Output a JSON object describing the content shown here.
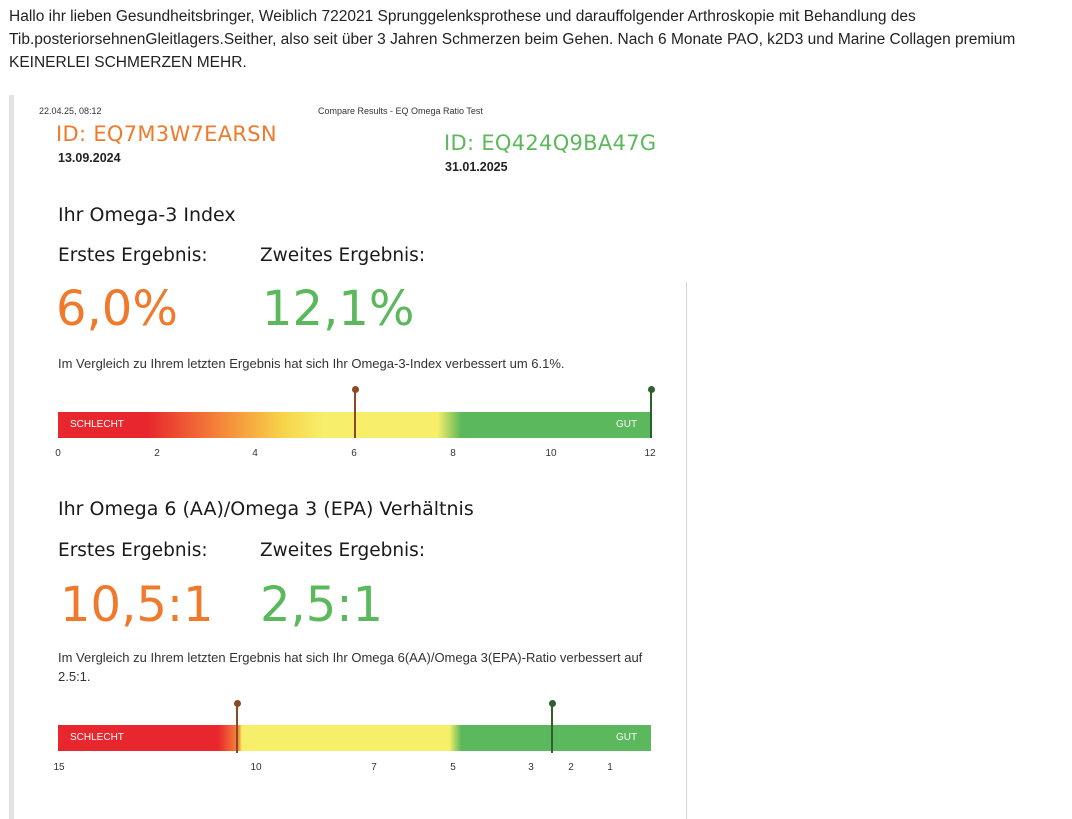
{
  "post": {
    "text": "Hallo ihr lieben Gesundheitsbringer, Weiblich 722021 Sprunggelenksprothese und darauffolgender Arthroskopie mit Behandlung des Tib.posteriorsehnenGleitlagers.Seither, also seit über 3 Jahren Schmerzen beim Gehen. Nach 6 Monate PAO, k2D3 und Marine Collagen premium KEINERLEI SCHMERZEN MEHR."
  },
  "report": {
    "timestamp": "22.04.25, 08:12",
    "header_title": "Compare Results - EQ Omega Ratio Test",
    "first": {
      "id": "ID: EQ7M3W7EARSN",
      "date": "13.09.2024"
    },
    "second": {
      "id": "ID: EQ424Q9BA47G",
      "date": "31.01.2025"
    },
    "colors": {
      "first": "#f07a2c",
      "second": "#5cb85c",
      "bad": "#e8262d",
      "mid": "#f7ef6a",
      "good": "#5cb85c"
    },
    "omega3_index": {
      "title": "Ihr Omega-3 Index",
      "first_label": "Erstes Ergebnis:",
      "second_label": "Zweites Ergebnis:",
      "first_value": "6,0%",
      "second_value": "12,1%",
      "note": "Im Vergleich zu Ihrem letzten Ergebnis hat sich Ihr Omega-3-Index verbessert um 6.1%.",
      "scale": {
        "bad_label": "SCHLECHT",
        "good_label": "GUT",
        "ticks": [
          "0",
          "2",
          "4",
          "6",
          "8",
          "10",
          "12"
        ],
        "min": 0,
        "max": 12,
        "first_marker": 6.0,
        "second_marker": 12.1
      }
    },
    "ratio": {
      "title": "Ihr Omega 6 (AA)/Omega 3 (EPA) Verhältnis",
      "first_label": "Erstes Ergebnis:",
      "second_label": "Zweites Ergebnis:",
      "first_value": "10,5:1",
      "second_value": "2,5:1",
      "note": "Im Vergleich zu Ihrem letzten Ergebnis hat sich Ihr Omega 6(AA)/Omega 3(EPA)-Ratio verbessert auf 2.5:1.",
      "scale": {
        "bad_label": "SCHLECHT",
        "good_label": "GUT",
        "ticks": [
          "15",
          "10",
          "7",
          "5",
          "3",
          "2",
          "1"
        ],
        "first_marker": 10.5,
        "second_marker": 2.5
      }
    }
  }
}
